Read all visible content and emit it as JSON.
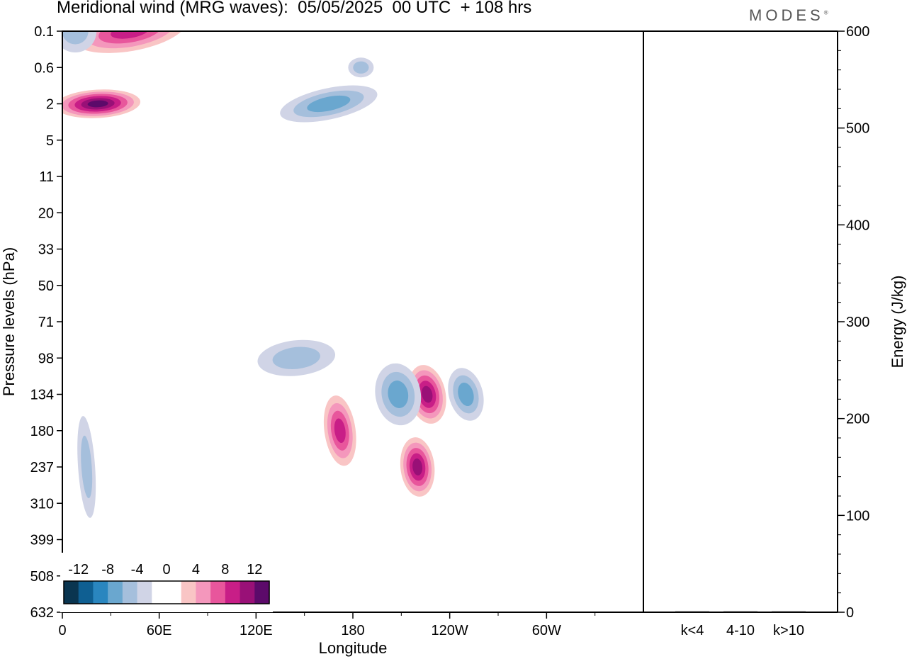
{
  "title": "Meridional wind (MRG waves):  05/05/2025  00 UTC  + 108 hrs",
  "brand": "MODES",
  "chart_data": [
    {
      "type": "heatmap",
      "title": "Meridional wind (MRG waves):  05/05/2025  00 UTC  + 108 hrs",
      "xlabel": "Longitude",
      "ylabel": "Pressure levels (hPa)",
      "x_ticks": [
        "0",
        "60E",
        "120E",
        "180",
        "120W",
        "60W"
      ],
      "x_tick_values": [
        0,
        60,
        120,
        180,
        240,
        300
      ],
      "xlim": [
        0,
        360
      ],
      "y_ticks": [
        "0.1",
        "0.6",
        "2",
        "5",
        "11",
        "20",
        "33",
        "50",
        "71",
        "98",
        "134",
        "180",
        "237",
        "310",
        "399",
        "508",
        "632"
      ],
      "colorbar": {
        "labels": [
          "-12",
          "-8",
          "-4",
          "0",
          "4",
          "8",
          "12"
        ],
        "colors": [
          "#0a3550",
          "#0f5f92",
          "#2a86bf",
          "#6aa7cf",
          "#a5bfdc",
          "#d0d4e6",
          "#ffffff",
          "#ffffff",
          "#f9c5c5",
          "#f497bc",
          "#e8569c",
          "#c81e87",
          "#991077",
          "#5c0a6a"
        ]
      },
      "features": [
        {
          "sign": "positive",
          "lon": 172,
          "level": "180",
          "peak": 8
        },
        {
          "sign": "positive",
          "lon": 226,
          "level": "134",
          "peak": 10
        },
        {
          "sign": "positive",
          "lon": 220,
          "level": "237",
          "peak": 10
        },
        {
          "sign": "negative",
          "lon": 208,
          "level": "134",
          "peak": -6
        },
        {
          "sign": "negative",
          "lon": 250,
          "level": "134",
          "peak": -6
        },
        {
          "sign": "negative",
          "lon": 15,
          "level": "237",
          "peak": -4
        },
        {
          "sign": "negative",
          "lon": 145,
          "level": "98",
          "peak": -4
        },
        {
          "sign": "positive",
          "lon": 22,
          "level": "2",
          "peak": 12
        },
        {
          "sign": "positive",
          "lon": 42,
          "level": "0.1",
          "peak": 8
        },
        {
          "sign": "negative",
          "lon": 165,
          "level": "2",
          "peak": -6
        },
        {
          "sign": "negative",
          "lon": 185,
          "level": "0.6",
          "peak": -4
        },
        {
          "sign": "negative",
          "lon": 8,
          "level": "0.1",
          "peak": -4
        }
      ]
    },
    {
      "type": "bar",
      "ylabel": "Energy (J/kg)",
      "categories": [
        "k<4",
        "4-10",
        "k>10"
      ],
      "values": [
        0.5,
        1,
        0.3
      ],
      "ylim": [
        0,
        600
      ],
      "y_ticks": [
        "0",
        "100",
        "200",
        "300",
        "400",
        "500",
        "600"
      ]
    }
  ]
}
